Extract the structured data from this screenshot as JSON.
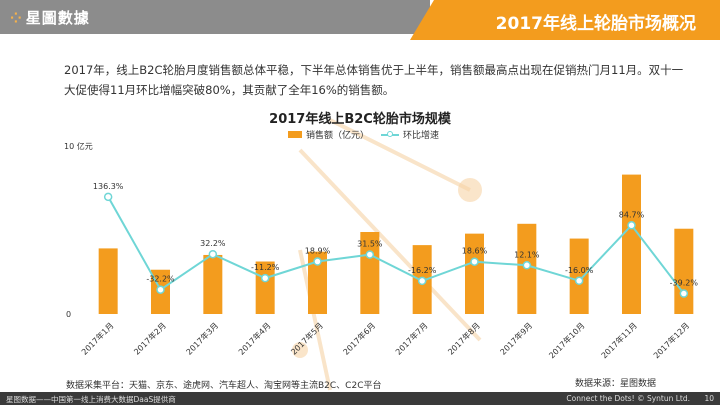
{
  "header": {
    "logo_text": "星圖數據",
    "title": "2017年线上轮胎市场概况"
  },
  "description": "2017年，线上B2C轮胎月度销售额总体平稳，下半年总体销售优于上半年，销售额最高点出现在促销热门月11月。双十一大促使得11月环比增幅突破80%，其贡献了全年16%的销售额。",
  "chart_data": {
    "type": "bar",
    "title": "2017年线上B2C轮胎市场规模",
    "ylabel": "10 亿元",
    "ylim": [
      0,
      10
    ],
    "y_ticks": [
      "10 亿元",
      "0"
    ],
    "categories": [
      "2017年1月",
      "2017年2月",
      "2017年3月",
      "2017年4月",
      "2017年5月",
      "2017年6月",
      "2017年7月",
      "2017年8月",
      "2017年9月",
      "2017年10月",
      "2017年11月",
      "2017年12月"
    ],
    "series": [
      {
        "name": "销售额（亿元）",
        "type": "bar",
        "color": "#f39c1e",
        "values": [
          4.0,
          2.7,
          3.6,
          3.2,
          3.8,
          5.0,
          4.2,
          4.9,
          5.5,
          4.6,
          8.5,
          5.2
        ]
      },
      {
        "name": "环比增速",
        "type": "line",
        "color": "#6fd6d6",
        "values": [
          136.3,
          -32.2,
          32.2,
          -11.2,
          18.9,
          31.5,
          -16.2,
          18.6,
          12.1,
          -16.0,
          84.7,
          -39.2
        ],
        "labels": [
          "136.3%",
          "-32.2%",
          "32.2%",
          "-11.2%",
          "18.9%",
          "31.5%",
          "-16.2%",
          "18.6%",
          "12.1%",
          "-16.0%",
          "84.7%",
          "-39.2%"
        ]
      }
    ],
    "legend_position": "top-center",
    "grid": false
  },
  "footnote": "数据采集平台：天猫、京东、途虎网、汽车超人、淘宝网等主流B2C、C2C平台",
  "source": "数据来源：星图数据",
  "footer": {
    "left": "星图数据——中国第一线上消费大数据DaaS提供商",
    "right": "Connect the Dots! © Syntun Ltd.",
    "page": "10"
  }
}
